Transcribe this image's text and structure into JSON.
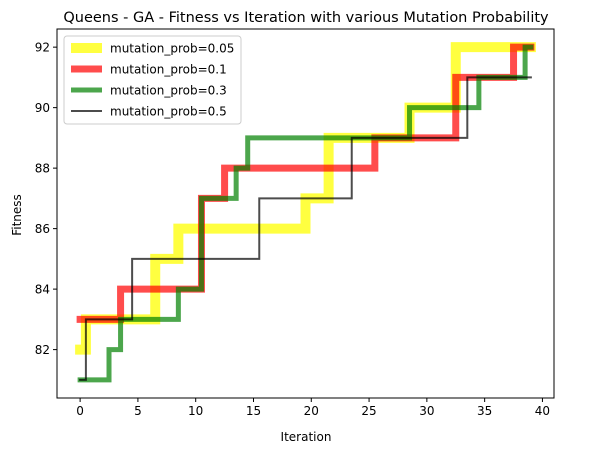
{
  "chart_data": {
    "type": "line",
    "title": "Queens - GA - Fitness vs Iteration with various Mutation Probability",
    "xlabel": "Iteration",
    "ylabel": "Fitness",
    "xlim": [
      -2,
      41
    ],
    "ylim": [
      80.4,
      92.6
    ],
    "xticks": [
      0,
      5,
      10,
      15,
      20,
      25,
      30,
      35,
      40
    ],
    "yticks": [
      82,
      84,
      86,
      88,
      90,
      92
    ],
    "grid": false,
    "legend_position": "upper-left",
    "series": [
      {
        "name": "mutation_prob=0.05",
        "color": "#ffff00",
        "alpha": 0.75,
        "linewidth": 10,
        "x": [
          0,
          1,
          2,
          3,
          4,
          5,
          6,
          7,
          8,
          9,
          10,
          11,
          12,
          13,
          14,
          15,
          16,
          17,
          18,
          19,
          20,
          21,
          22,
          23,
          24,
          25,
          26,
          27,
          28,
          29,
          30,
          31,
          32,
          33,
          34,
          35,
          36,
          37,
          38,
          39
        ],
        "y": [
          82,
          83,
          83,
          83,
          83,
          83,
          83,
          85,
          85,
          86,
          86,
          86,
          86,
          86,
          86,
          86,
          86,
          86,
          86,
          86,
          87,
          87,
          89,
          89,
          89,
          89,
          89,
          89,
          89,
          90,
          90,
          90,
          90,
          92,
          92,
          92,
          92,
          92,
          92,
          92
        ]
      },
      {
        "name": "mutation_prob=0.1",
        "color": "#ff0000",
        "alpha": 0.7,
        "linewidth": 7,
        "x": [
          0,
          1,
          2,
          3,
          4,
          5,
          6,
          7,
          8,
          9,
          10,
          11,
          12,
          13,
          14,
          15,
          16,
          17,
          18,
          19,
          20,
          21,
          22,
          23,
          24,
          25,
          26,
          27,
          28,
          29,
          30,
          31,
          32,
          33,
          34,
          35,
          36,
          37,
          38,
          39
        ],
        "y": [
          83,
          83,
          83,
          83,
          84,
          84,
          84,
          84,
          84,
          84,
          84,
          87,
          87,
          88,
          88,
          88,
          88,
          88,
          88,
          88,
          88,
          88,
          88,
          88,
          88,
          88,
          89,
          89,
          89,
          89,
          89,
          89,
          89,
          91,
          91,
          91,
          91,
          91,
          92,
          92
        ]
      },
      {
        "name": "mutation_prob=0.3",
        "color": "#008000",
        "alpha": 0.7,
        "linewidth": 5,
        "x": [
          0,
          1,
          2,
          3,
          4,
          5,
          6,
          7,
          8,
          9,
          10,
          11,
          12,
          13,
          14,
          15,
          16,
          17,
          18,
          19,
          20,
          21,
          22,
          23,
          24,
          25,
          26,
          27,
          28,
          29,
          30,
          31,
          32,
          33,
          34,
          35,
          36,
          37,
          38,
          39
        ],
        "y": [
          81,
          81,
          81,
          82,
          83,
          83,
          83,
          83,
          83,
          84,
          84,
          87,
          87,
          87,
          88,
          89,
          89,
          89,
          89,
          89,
          89,
          89,
          89,
          89,
          89,
          89,
          89,
          89,
          89,
          90,
          90,
          90,
          90,
          90,
          90,
          91,
          91,
          91,
          91,
          92
        ]
      },
      {
        "name": "mutation_prob=0.5",
        "color": "#000000",
        "alpha": 0.7,
        "linewidth": 2,
        "x": [
          0,
          1,
          2,
          3,
          4,
          5,
          6,
          7,
          8,
          9,
          10,
          11,
          12,
          13,
          14,
          15,
          16,
          17,
          18,
          19,
          20,
          21,
          22,
          23,
          24,
          25,
          26,
          27,
          28,
          29,
          30,
          31,
          32,
          33,
          34,
          35,
          36,
          37,
          38,
          39
        ],
        "y": [
          81,
          83,
          83,
          83,
          83,
          85,
          85,
          85,
          85,
          85,
          85,
          85,
          85,
          85,
          85,
          85,
          87,
          87,
          87,
          87,
          87,
          87,
          87,
          87,
          89,
          89,
          89,
          89,
          89,
          89,
          89,
          89,
          89,
          89,
          91,
          91,
          91,
          91,
          91,
          91
        ]
      }
    ]
  }
}
